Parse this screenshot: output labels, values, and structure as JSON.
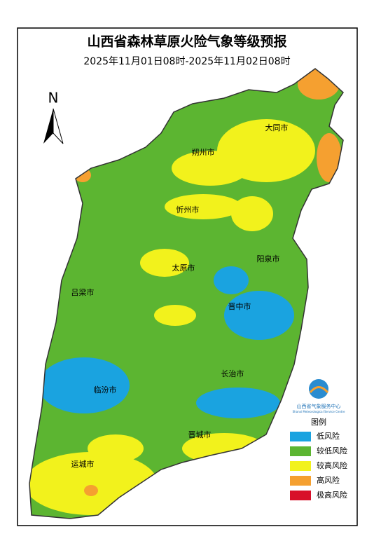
{
  "title": "山西省森林草原火险气象等级预报",
  "subtitle": "2025年11月01日08时-2025年11月02日08时",
  "north": "N",
  "cities": [
    "大同市",
    "朔州市",
    "忻州市",
    "阳泉市",
    "太原市",
    "吕梁市",
    "晋中市",
    "长治市",
    "临汾市",
    "晋城市",
    "运城市"
  ],
  "logo": {
    "name": "山西省气象服务中心",
    "english": "Shanxi Meteorological Service Centre"
  },
  "legend": {
    "title": "图例",
    "items": [
      {
        "label": "低风险",
        "color": "#1aa3e0"
      },
      {
        "label": "较低风险",
        "color": "#5cb531"
      },
      {
        "label": "较高风险",
        "color": "#f2f21c"
      },
      {
        "label": "高风险",
        "color": "#f5a030"
      },
      {
        "label": "极高风险",
        "color": "#d8102a"
      }
    ]
  }
}
